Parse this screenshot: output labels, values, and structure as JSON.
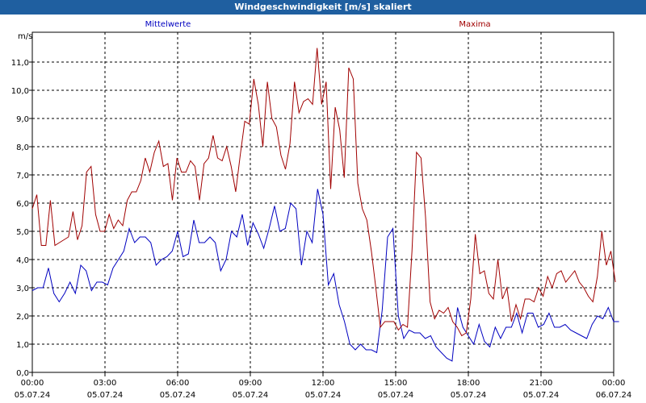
{
  "window": {
    "title": "Windgeschwindigkeit [m/s] skaliert"
  },
  "chart_data": {
    "type": "line",
    "unit_label": "m/s",
    "ylim": [
      0,
      12
    ],
    "yticks": [
      "0,0",
      "1,0",
      "2,0",
      "3,0",
      "4,0",
      "5,0",
      "6,0",
      "7,0",
      "8,0",
      "9,0",
      "10,0",
      "11,0"
    ],
    "xticks": [
      {
        "time": "00:00",
        "date": "05.07.24"
      },
      {
        "time": "03:00",
        "date": "05.07.24"
      },
      {
        "time": "06:00",
        "date": "05.07.24"
      },
      {
        "time": "09:00",
        "date": "05.07.24"
      },
      {
        "time": "12:00",
        "date": "05.07.24"
      },
      {
        "time": "15:00",
        "date": "05.07.24"
      },
      {
        "time": "18:00",
        "date": "05.07.24"
      },
      {
        "time": "21:00",
        "date": "05.07.24"
      },
      {
        "time": "00:00",
        "date": "06.07.24"
      }
    ],
    "x_hours": [
      0,
      0.25,
      0.5,
      0.75,
      1,
      1.25,
      1.5,
      1.75,
      2,
      2.25,
      2.5,
      2.75,
      3,
      3.25,
      3.5,
      3.75,
      4,
      4.25,
      4.5,
      4.75,
      5,
      5.25,
      5.5,
      5.75,
      6,
      6.25,
      6.5,
      6.75,
      7,
      7.25,
      7.5,
      7.75,
      8,
      8.25,
      8.5,
      8.75,
      9,
      9.25,
      9.5,
      9.75,
      10,
      10.25,
      10.5,
      10.75,
      11,
      11.25,
      11.5,
      11.75,
      12,
      12.25,
      12.5,
      12.75,
      13,
      13.25,
      13.5,
      13.75,
      14,
      14.25,
      14.5,
      14.75,
      15,
      15.25,
      15.5,
      15.75,
      16,
      16.25,
      16.5,
      16.75,
      17,
      17.25,
      17.5,
      17.75,
      18,
      18.25,
      18.5,
      18.75,
      19,
      19.25,
      19.5,
      19.75,
      20,
      20.25,
      20.5,
      20.75,
      21,
      21.25,
      21.5,
      21.75,
      22,
      22.25,
      22.5,
      22.75,
      23,
      23.25,
      23.5,
      23.75
    ],
    "grid": true,
    "series": [
      {
        "name": "Mittelwerte",
        "color": "#0000c0",
        "values": [
          2.9,
          3.0,
          3.0,
          3.7,
          2.8,
          2.5,
          2.8,
          3.2,
          2.8,
          3.8,
          3.6,
          2.9,
          3.2,
          3.2,
          3.1,
          3.7,
          4.0,
          4.3,
          5.1,
          4.6,
          4.8,
          4.8,
          4.6,
          3.8,
          4.0,
          4.1,
          4.3,
          5.0,
          4.1,
          4.2,
          5.4,
          4.6,
          4.6,
          4.8,
          4.6,
          3.6,
          4.0,
          5.0,
          4.8,
          5.6,
          4.5,
          5.3,
          4.9,
          4.4,
          5.1,
          5.9,
          5.0,
          5.1,
          6.0,
          5.8,
          3.8,
          5.0,
          4.6,
          6.5,
          5.6,
          3.1,
          3.5,
          2.4,
          1.8,
          1.0,
          0.8,
          1.0,
          0.8,
          0.8,
          0.7,
          2.2,
          4.8,
          5.1,
          2.0,
          1.2,
          1.5,
          1.4,
          1.4,
          1.2,
          1.3,
          0.9,
          0.7,
          0.5,
          0.4,
          2.3,
          1.6,
          1.3,
          1.0,
          1.7,
          1.1,
          0.9,
          1.6,
          1.2,
          1.6,
          1.6,
          2.1,
          1.4,
          2.1,
          2.1,
          1.6,
          1.7,
          2.1,
          1.6,
          1.6,
          1.7,
          1.5,
          1.4,
          1.3,
          1.2,
          1.7,
          2.0,
          1.9,
          2.3,
          1.8,
          1.8
        ],
        "x_start": 0,
        "x_step": 0.2222
      },
      {
        "name": "Maxima",
        "color": "#a00000",
        "values": [
          5.8,
          6.3,
          4.5,
          4.5,
          6.1,
          4.5,
          4.6,
          4.7,
          4.8,
          5.7,
          4.7,
          5.2,
          7.1,
          7.3,
          5.6,
          5.0,
          5.0,
          5.6,
          5.1,
          5.4,
          5.2,
          6.1,
          6.4,
          6.4,
          6.8,
          7.6,
          7.1,
          7.8,
          8.2,
          7.3,
          7.4,
          6.1,
          7.6,
          7.1,
          7.1,
          7.5,
          7.3,
          6.1,
          7.4,
          7.6,
          8.4,
          7.6,
          7.5,
          8.0,
          7.3,
          6.4,
          7.7,
          8.9,
          8.8,
          10.4,
          9.5,
          8.0,
          10.3,
          9.0,
          8.7,
          7.7,
          7.2,
          8.1,
          10.3,
          9.2,
          9.6,
          9.7,
          9.5,
          11.5,
          9.5,
          10.3,
          6.5,
          9.4,
          8.6,
          6.9,
          10.8,
          10.4,
          6.7,
          5.8,
          5.4,
          4.3,
          3.0,
          1.6,
          1.8,
          1.8,
          1.8,
          1.5,
          1.7,
          1.6,
          4.3,
          7.8,
          7.6,
          5.5,
          2.5,
          1.9,
          2.2,
          2.1,
          2.3,
          1.8,
          1.6,
          1.3,
          1.4,
          2.6,
          4.9,
          3.5,
          3.6,
          2.8,
          2.6,
          4.0,
          2.6,
          3.0,
          1.8,
          2.4,
          1.9,
          2.6,
          2.6,
          2.5,
          3.0,
          2.7,
          3.4,
          3.0,
          3.5,
          3.6,
          3.2,
          3.4,
          3.6,
          3.2,
          3.0,
          2.7,
          2.5,
          3.4,
          5.0,
          3.8,
          4.3,
          3.2
        ],
        "x_start": 0,
        "x_step": 0.1866
      }
    ]
  }
}
